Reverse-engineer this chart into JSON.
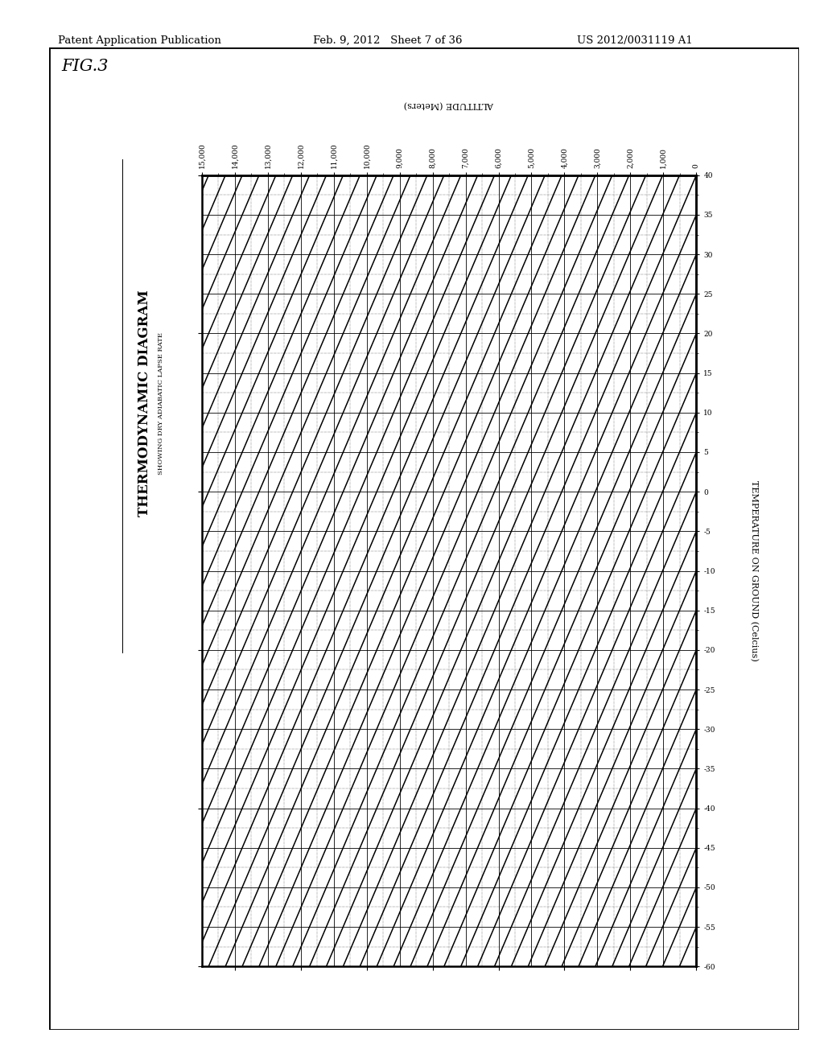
{
  "header_left": "Patent Application Publication",
  "header_mid": "Feb. 9, 2012   Sheet 7 of 36",
  "header_right": "US 2012/0031119 A1",
  "fig_label": "FIG.3",
  "title": "THERMODYNAMIC DIAGRAM",
  "subtitle": "SHOWING DRY ADIABATIC LAPSE RATE",
  "x_label": "TEMPERATURE ON GROUND (Celcius)",
  "y_label": "ALTITUDE (Meters)",
  "temp_ticks": [
    40,
    35,
    30,
    25,
    20,
    15,
    10,
    5,
    0,
    -5,
    -10,
    -15,
    -20,
    -25,
    -30,
    -35,
    -40,
    -45,
    -50,
    -55,
    -60
  ],
  "alt_ticks": [
    0,
    1000,
    2000,
    3000,
    4000,
    5000,
    6000,
    7000,
    8000,
    9000,
    10000,
    11000,
    12000,
    13000,
    14000,
    15000
  ],
  "temp_min": 40,
  "temp_max": -60,
  "alt_min": 0,
  "alt_max": 15000,
  "lapse_rate_degC_per_1000m": 9.8,
  "bg_color": "#ffffff",
  "line_color": "#000000"
}
